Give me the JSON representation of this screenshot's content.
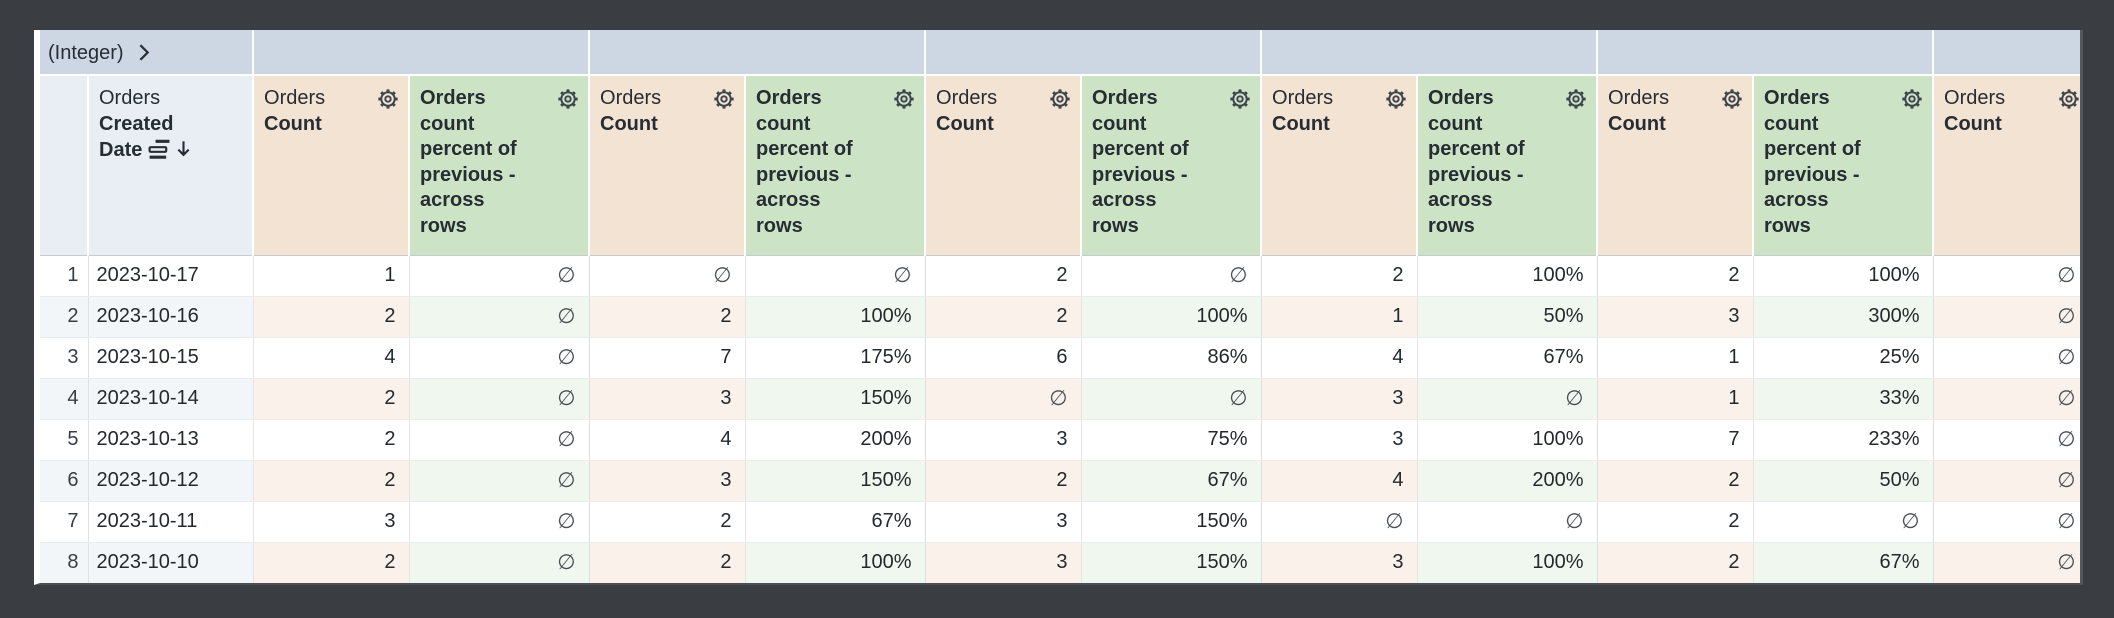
{
  "pivot_header": {
    "dimension_label": "(Integer)",
    "group_labels": [
      "",
      "",
      "",
      "",
      "",
      ""
    ]
  },
  "column_headers": {
    "row_number": "",
    "date": {
      "view_label": "Orders",
      "field_label": "Created Date"
    },
    "count": {
      "view_label": "Orders",
      "field_label": "Count"
    },
    "percent": {
      "label_lines": [
        "Orders count",
        "percent of",
        "previous -",
        "across",
        "rows"
      ]
    }
  },
  "sort": {
    "column": "Orders Created Date",
    "direction": "descending"
  },
  "null_symbol": "∅",
  "rows": [
    {
      "index": "1",
      "date": "2023-10-17",
      "values": [
        "1",
        "∅",
        "∅",
        "∅",
        "2",
        "∅",
        "2",
        "100%",
        "2",
        "100%",
        "∅"
      ]
    },
    {
      "index": "2",
      "date": "2023-10-16",
      "values": [
        "2",
        "∅",
        "2",
        "100%",
        "2",
        "100%",
        "1",
        "50%",
        "3",
        "300%",
        "∅"
      ]
    },
    {
      "index": "3",
      "date": "2023-10-15",
      "values": [
        "4",
        "∅",
        "7",
        "175%",
        "6",
        "86%",
        "4",
        "67%",
        "1",
        "25%",
        "∅"
      ]
    },
    {
      "index": "4",
      "date": "2023-10-14",
      "values": [
        "2",
        "∅",
        "3",
        "150%",
        "∅",
        "∅",
        "3",
        "∅",
        "1",
        "33%",
        "∅"
      ]
    },
    {
      "index": "5",
      "date": "2023-10-13",
      "values": [
        "2",
        "∅",
        "4",
        "200%",
        "3",
        "75%",
        "3",
        "100%",
        "7",
        "233%",
        "∅"
      ]
    },
    {
      "index": "6",
      "date": "2023-10-12",
      "values": [
        "2",
        "∅",
        "3",
        "150%",
        "2",
        "67%",
        "4",
        "200%",
        "2",
        "50%",
        "∅"
      ]
    },
    {
      "index": "7",
      "date": "2023-10-11",
      "values": [
        "3",
        "∅",
        "2",
        "67%",
        "3",
        "150%",
        "∅",
        "∅",
        "2",
        "∅",
        "∅"
      ]
    },
    {
      "index": "8",
      "date": "2023-10-10",
      "values": [
        "2",
        "∅",
        "2",
        "100%",
        "3",
        "150%",
        "3",
        "100%",
        "2",
        "67%",
        "∅"
      ]
    }
  ],
  "colors": {
    "frame": "#3a3e43",
    "pivot_header_bg": "#ccd7e3",
    "dimension_header_bg": "#e9eef5",
    "measure_header_bg": "#f2e3d3",
    "calc_header_bg": "#cde3c6",
    "even_row_dimension_bg": "#f3f6f9",
    "even_row_measure_bg": "#f9f1ea",
    "even_row_calc_bg": "#f0f7ee",
    "header_text": "#262d33",
    "value_text": "#24292e",
    "null_text": "#4a5056"
  }
}
